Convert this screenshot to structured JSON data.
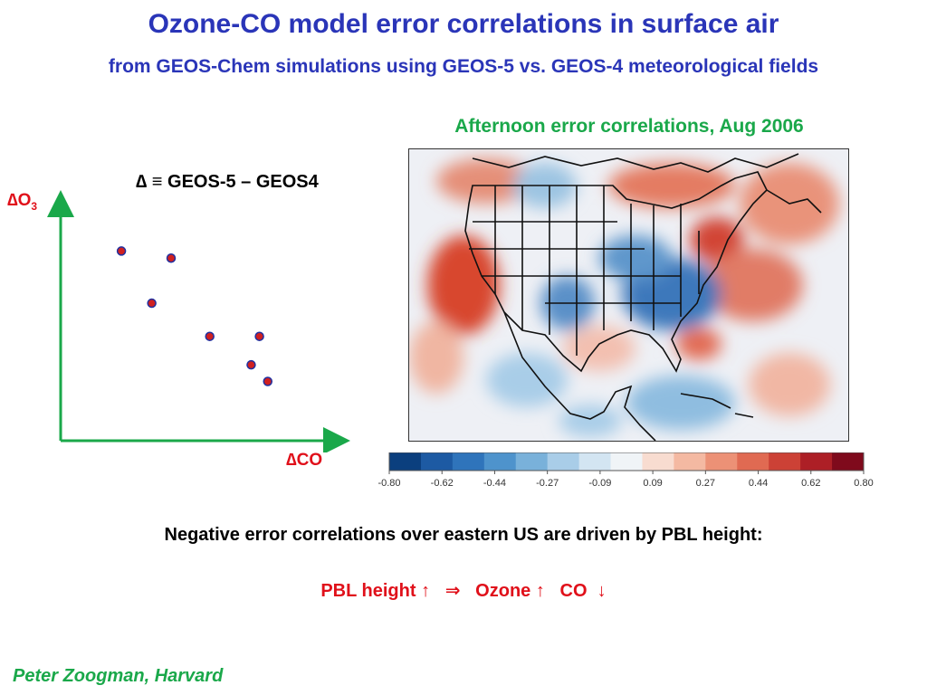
{
  "title": "Ozone-CO model error correlations in surface air",
  "subtitle": "from GEOS-Chem simulations using GEOS-5 vs. GEOS-4 meteorological fields",
  "map_caption": "Afternoon error correlations, Aug 2006",
  "delta_definition": "∆ ≡ GEOS-5 – GEOS4",
  "schematic": {
    "y_label_delta": "∆O",
    "y_label_sub": "3",
    "x_label": "∆CO",
    "axis_color": "#1aa84a",
    "dot_color": "#2030a0",
    "dot_fill": "#d02020",
    "points": [
      {
        "x": 0.22,
        "y": 0.8
      },
      {
        "x": 0.4,
        "y": 0.77
      },
      {
        "x": 0.33,
        "y": 0.58
      },
      {
        "x": 0.54,
        "y": 0.44
      },
      {
        "x": 0.72,
        "y": 0.44
      },
      {
        "x": 0.69,
        "y": 0.32
      },
      {
        "x": 0.75,
        "y": 0.25
      }
    ]
  },
  "colorbar": {
    "ticks": [
      "-0.80",
      "-0.62",
      "-0.44",
      "-0.27",
      "-0.09",
      "0.09",
      "0.27",
      "0.44",
      "0.62",
      "0.80"
    ],
    "colors": [
      "#0b3f7e",
      "#1d5aa3",
      "#2f74bb",
      "#4e93cc",
      "#79b1da",
      "#a9cde8",
      "#d3e5f2",
      "#f0f4f7",
      "#f8dcd0",
      "#f4b9a2",
      "#ec9176",
      "#e06a52",
      "#cc4136",
      "#ad1f26",
      "#7f0a1c"
    ]
  },
  "bullet_text": "Negative error correlations over eastern US are driven by PBL height:",
  "pbl_line": "PBL height ↑   ⇒   Ozone ↑   CO  ↓",
  "author": "Peter Zoogman, Harvard"
}
